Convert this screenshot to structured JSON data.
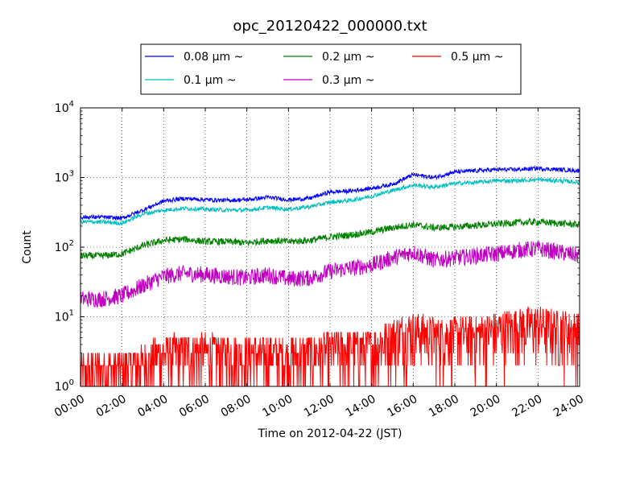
{
  "chart_data": {
    "type": "line",
    "title": "opc_20120422_000000.txt",
    "xlabel": "Time on 2012-04-22 (JST)",
    "ylabel": "Count",
    "xscale": "time",
    "yscale": "log",
    "xlim": [
      "00:00",
      "24:00"
    ],
    "ylim": [
      1,
      10000
    ],
    "x_tick_labels": [
      "00:00",
      "02:00",
      "04:00",
      "06:00",
      "08:00",
      "10:00",
      "12:00",
      "14:00",
      "16:00",
      "18:00",
      "20:00",
      "22:00",
      "24:00"
    ],
    "y_tick_labels": [
      {
        "base": "10",
        "exp": "0"
      },
      {
        "base": "10",
        "exp": "1"
      },
      {
        "base": "10",
        "exp": "2"
      },
      {
        "base": "10",
        "exp": "3"
      },
      {
        "base": "10",
        "exp": "4"
      }
    ],
    "grid": true,
    "legend_position": "top-center",
    "x": [
      "00:00",
      "01:00",
      "02:00",
      "03:00",
      "04:00",
      "05:00",
      "06:00",
      "07:00",
      "08:00",
      "09:00",
      "10:00",
      "11:00",
      "12:00",
      "13:00",
      "14:00",
      "15:00",
      "16:00",
      "17:00",
      "18:00",
      "19:00",
      "20:00",
      "21:00",
      "22:00",
      "23:00",
      "24:00"
    ],
    "series": [
      {
        "name": "0.08 μm ~",
        "color": "#0000ff",
        "values": [
          270,
          270,
          260,
          340,
          460,
          500,
          480,
          470,
          480,
          520,
          480,
          500,
          620,
          640,
          700,
          800,
          1100,
          1000,
          1200,
          1250,
          1300,
          1300,
          1350,
          1300,
          1250
        ]
      },
      {
        "name": "0.1 μm ~",
        "color": "#00bfbf",
        "values": [
          230,
          230,
          220,
          300,
          340,
          360,
          350,
          340,
          340,
          370,
          350,
          380,
          440,
          470,
          540,
          650,
          780,
          730,
          820,
          850,
          900,
          900,
          930,
          900,
          850
        ]
      },
      {
        "name": "0.2 μm ~",
        "color": "#008000",
        "values": [
          75,
          75,
          80,
          105,
          125,
          130,
          120,
          120,
          115,
          125,
          120,
          125,
          140,
          150,
          165,
          190,
          210,
          190,
          195,
          205,
          215,
          225,
          230,
          220,
          210
        ]
      },
      {
        "name": "0.3 μm ~",
        "color": "#bf00bf",
        "values": [
          18,
          18,
          20,
          28,
          38,
          42,
          40,
          38,
          36,
          40,
          35,
          36,
          45,
          50,
          55,
          70,
          85,
          65,
          70,
          75,
          80,
          90,
          95,
          85,
          75
        ]
      },
      {
        "name": "0.5 μm ~",
        "color": "#ff0000",
        "values": [
          1.6,
          1.8,
          1.8,
          2.2,
          3.0,
          3.2,
          3.2,
          3.0,
          2.8,
          3.0,
          2.8,
          3.0,
          3.4,
          3.6,
          3.6,
          5.5,
          6.5,
          5.5,
          5.5,
          5.8,
          6.5,
          7.5,
          8.0,
          7.0,
          6.5
        ]
      }
    ]
  }
}
